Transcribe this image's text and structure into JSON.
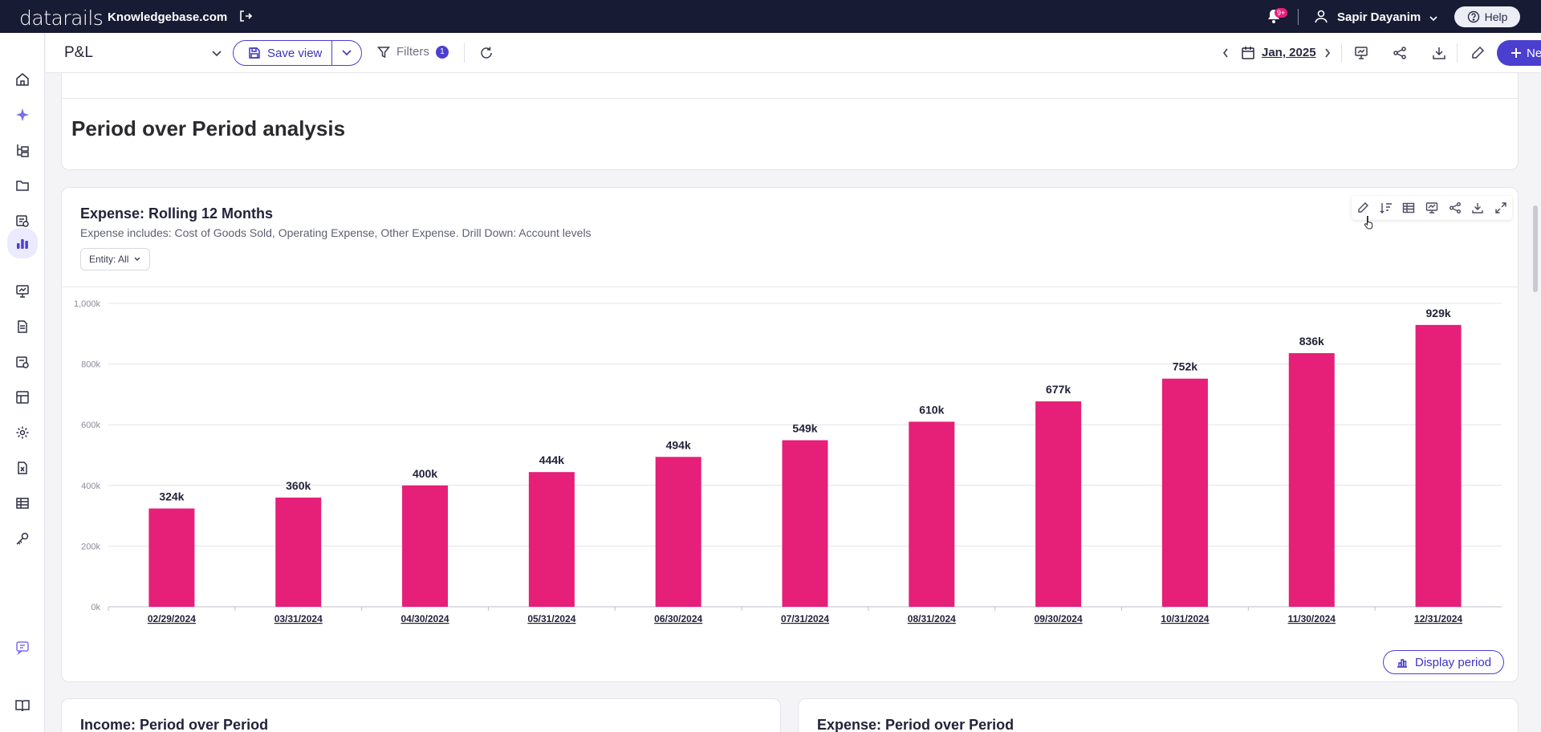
{
  "topbar": {
    "logo": "datarails",
    "company": "Knowledgebase.com",
    "notification_badge": "9+",
    "user_name": "Sapir Dayanim",
    "help_label": "Help"
  },
  "sidebar": {
    "items": [
      "home",
      "ai-assistant",
      "hierarchy",
      "folders",
      "reports-settings",
      "dashboards",
      "presentations",
      "documents",
      "scheduled-settings",
      "tables",
      "settings",
      "excel-export",
      "grid",
      "key",
      "chat",
      "knowledge-book"
    ],
    "active": "dashboards"
  },
  "toolbar": {
    "view_name": "P&L",
    "save_view_label": "Save view",
    "filters_label": "Filters",
    "filters_count": "1",
    "date": "Jan, 2025",
    "new_label": "New"
  },
  "section": {
    "title": "Period over Period analysis"
  },
  "chart_card": {
    "title": "Expense: Rolling 12 Months",
    "subtitle": "Expense includes: Cost of Goods Sold, Operating Expense, Other Expense. Drill Down: Account levels",
    "entity_filter": "Entity: All",
    "display_period_label": "Display period"
  },
  "chart_data": {
    "type": "bar",
    "title": "Expense: Rolling 12 Months",
    "categories": [
      "02/29/2024",
      "03/31/2024",
      "04/30/2024",
      "05/31/2024",
      "06/30/2024",
      "07/31/2024",
      "08/31/2024",
      "09/30/2024",
      "10/31/2024",
      "11/30/2024",
      "12/31/2024"
    ],
    "values": [
      324,
      360,
      400,
      444,
      494,
      549,
      610,
      677,
      752,
      836,
      929
    ],
    "data_labels": [
      "324k",
      "360k",
      "400k",
      "444k",
      "494k",
      "549k",
      "610k",
      "677k",
      "752k",
      "836k",
      "929k"
    ],
    "y_ticks": [
      "0k",
      "200k",
      "400k",
      "600k",
      "800k",
      "1,000k"
    ],
    "ylim": [
      0,
      1000
    ],
    "unit": "k",
    "bar_color": "#e61f78",
    "grid": true,
    "legend": "none"
  },
  "bottom_cards": {
    "left_title": "Income: Period over Period",
    "right_title": "Expense: Period over Period"
  },
  "colors": {
    "topbar_bg": "#181b34",
    "accent": "#4b3fd0",
    "bar": "#e61f78"
  }
}
